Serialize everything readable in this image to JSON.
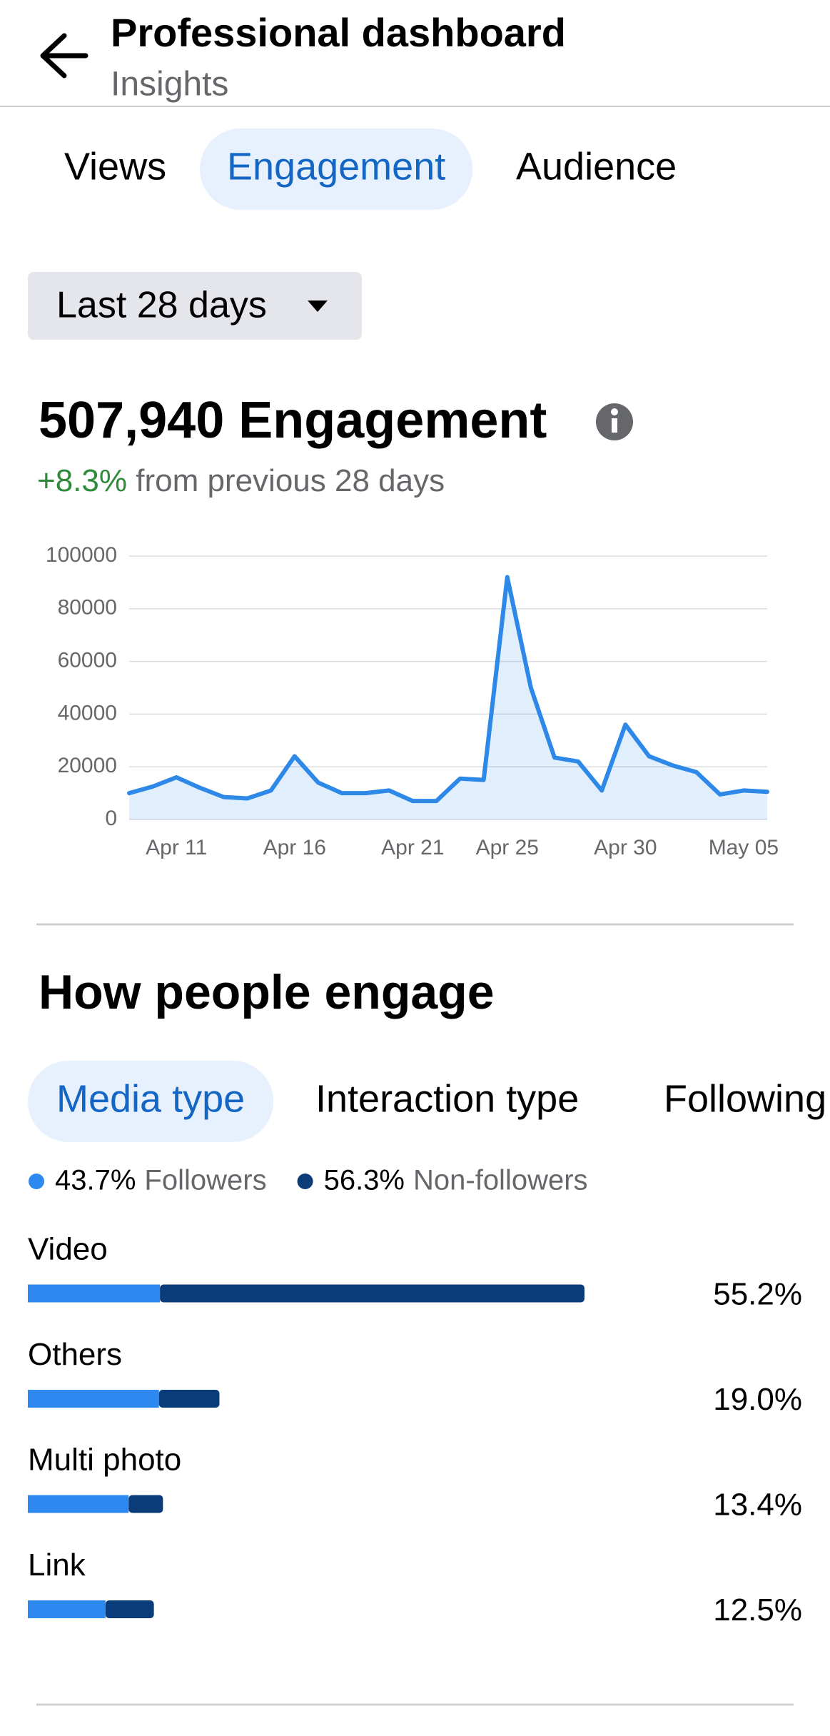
{
  "header": {
    "title": "Professional dashboard",
    "subtitle": "Insights"
  },
  "tabs": [
    "Views",
    "Engagement",
    "Audience"
  ],
  "active_tab": 1,
  "filter": "Last 28 days",
  "summary": {
    "title": "507,940 Engagement",
    "change": "+8.3%",
    "change_text": "from previous 28 days"
  },
  "chart_data": {
    "type": "line",
    "categories": [
      null,
      null,
      "Apr 11",
      null,
      null,
      null,
      null,
      "Apr 16",
      null,
      null,
      null,
      null,
      "Apr 21",
      null,
      null,
      null,
      "Apr 25",
      null,
      null,
      null,
      null,
      "Apr 30",
      null,
      null,
      null,
      null,
      "May 05",
      null
    ],
    "series": [
      {
        "color": "#2d88e8",
        "values": [
          10000,
          12500,
          16000,
          12000,
          8500,
          8000,
          11000,
          24000,
          14000,
          10000,
          10000,
          11000,
          7000,
          7000,
          15500,
          15000,
          92000,
          50000,
          23500,
          22000,
          11000,
          36000,
          24000,
          20500,
          18000,
          9500,
          11000,
          10500
        ]
      }
    ],
    "ylim": [
      0,
      100000
    ],
    "yticks": [
      0,
      20000,
      40000,
      60000,
      80000,
      100000
    ],
    "grid": true
  },
  "section": {
    "title": "How people engage",
    "tabs": [
      "Media type",
      "Interaction type",
      "Following"
    ],
    "active_tab": 0,
    "breakdown": {
      "type": "stacked-bar",
      "categories": [
        "Video",
        "Others",
        "Multi photo",
        "Link"
      ],
      "values": [
        55.2,
        19.0,
        13.4,
        12.5
      ],
      "value_labels": [
        "55.2%",
        "19.0%",
        "13.4%",
        "12.5%"
      ],
      "series": [
        {
          "name": "Followers",
          "share": 43.7,
          "share_label": "43.7%",
          "color": "#2d88f0",
          "values": [
            13.1,
            13.0,
            10.0,
            7.7
          ]
        },
        {
          "name": "Non-followers",
          "share": 56.3,
          "share_label": "56.3%",
          "color": "#0b3c7a",
          "values": [
            42.1,
            6.0,
            3.4,
            4.8
          ]
        }
      ]
    }
  }
}
